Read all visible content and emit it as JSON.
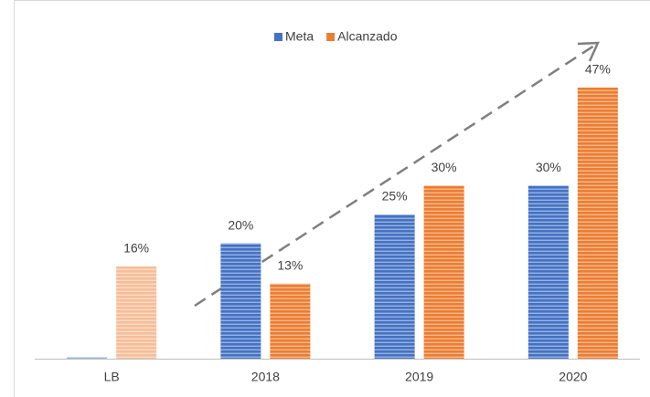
{
  "chart_data": {
    "type": "bar",
    "categories": [
      "LB",
      "2018",
      "2019",
      "2020"
    ],
    "series": [
      {
        "name": "Meta",
        "color": "#4472c4",
        "values": [
          0.3,
          20,
          25,
          30
        ],
        "value_labels": [
          null,
          "20%",
          "25%",
          "30%"
        ]
      },
      {
        "name": "Alcanzado",
        "color": "#ed7d31",
        "values": [
          16,
          13,
          30,
          47
        ],
        "value_labels": [
          "16%",
          "13%",
          "30%",
          "47%"
        ]
      }
    ],
    "ylim": [
      0,
      50
    ]
  }
}
